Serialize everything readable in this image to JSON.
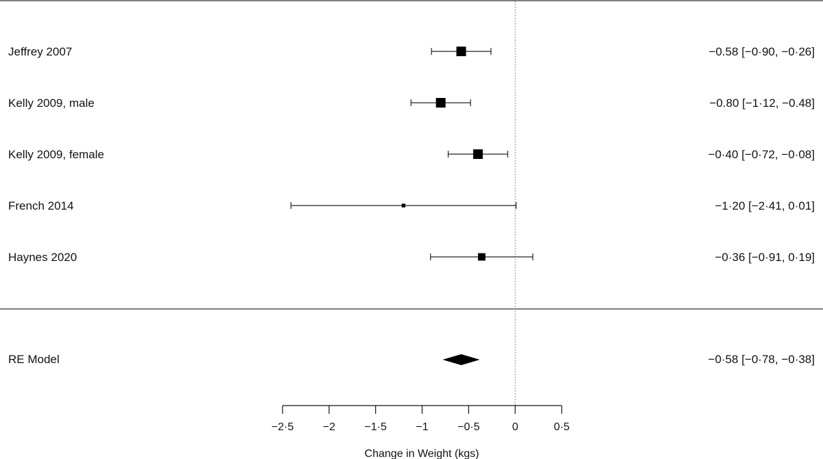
{
  "chart_data": {
    "type": "forest",
    "xlabel": "Change in Weight (kgs)",
    "xlim": [
      -2.5,
      0.5
    ],
    "xticks": [
      -2.5,
      -2,
      -1.5,
      -1,
      -0.5,
      0,
      0.5
    ],
    "xtick_labels": [
      "−2·5",
      "−2",
      "−1·5",
      "−1",
      "−0·5",
      "0",
      "0·5"
    ],
    "reference_line": 0,
    "studies": [
      {
        "label": "Jeffrey 2007",
        "estimate": -0.58,
        "lower": -0.9,
        "upper": -0.26,
        "weight": 1.0,
        "ci_text": "−0.58 [−0·90, −0·26]"
      },
      {
        "label": "Kelly 2009, male",
        "estimate": -0.8,
        "lower": -1.12,
        "upper": -0.48,
        "weight": 1.0,
        "ci_text": "−0.80 [−1·12, −0.48]"
      },
      {
        "label": "Kelly 2009, female",
        "estimate": -0.4,
        "lower": -0.72,
        "upper": -0.08,
        "weight": 1.0,
        "ci_text": "−0·40 [−0·72, −0·08]"
      },
      {
        "label": "French 2014",
        "estimate": -1.2,
        "lower": -2.41,
        "upper": 0.01,
        "weight": 0.15,
        "ci_text": "−1·20 [−2·41,  0·01]"
      },
      {
        "label": "Haynes 2020",
        "estimate": -0.36,
        "lower": -0.91,
        "upper": 0.19,
        "weight": 0.6,
        "ci_text": "−0·36 [−0·91,  0·19]"
      }
    ],
    "summary": {
      "label": "RE Model",
      "estimate": -0.58,
      "lower": -0.78,
      "upper": -0.38,
      "ci_text": "−0·58 [−0·78, −0·38]"
    }
  }
}
